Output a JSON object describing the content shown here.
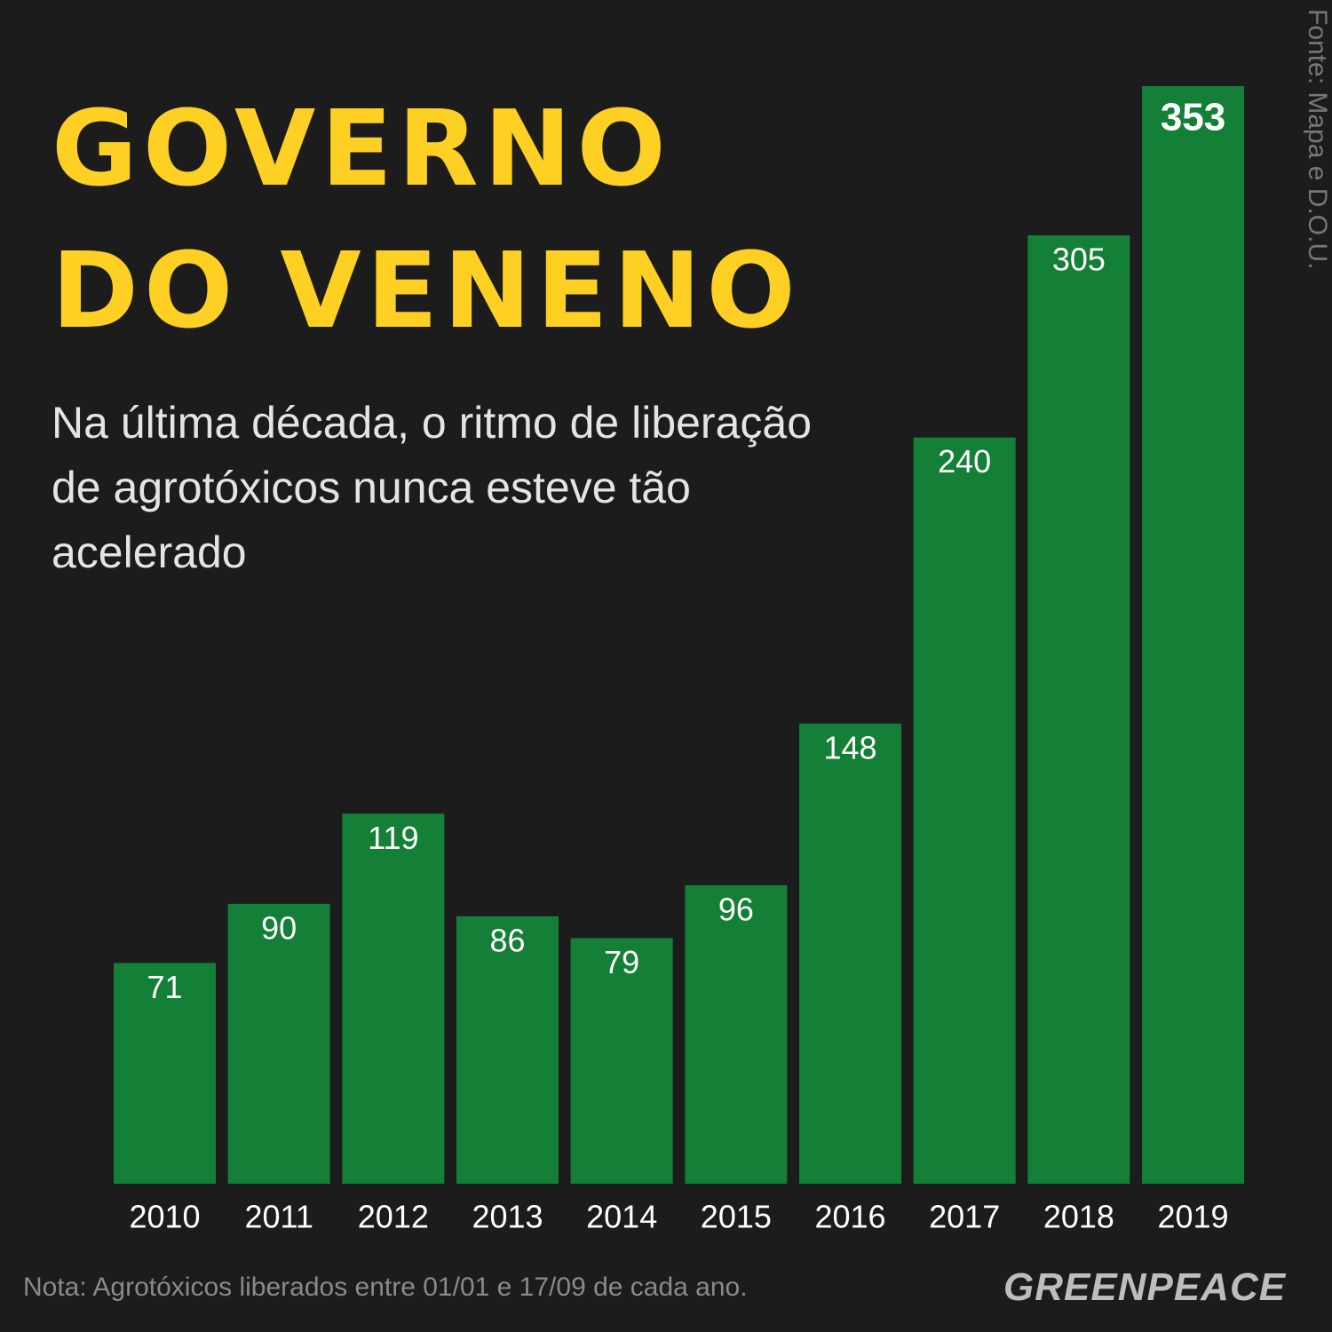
{
  "chart_data": {
    "type": "bar",
    "title": [
      "GOVERNO",
      "DO VENENO"
    ],
    "subtitle": "Na última década, o ritmo de liberação de agrotóxicos nunca esteve tão acelerado",
    "source": "Fonte: Mapa e D.O.U.",
    "note": "Nota: Agrotóxicos liberados entre 01/01 e 17/09 de cada ano.",
    "logo": "GREENPEACE",
    "categories": [
      "2010",
      "2011",
      "2012",
      "2013",
      "2014",
      "2015",
      "2016",
      "2017",
      "2018",
      "2019"
    ],
    "values": [
      71,
      90,
      119,
      86,
      79,
      96,
      148,
      240,
      305,
      353
    ],
    "color": "#147f37"
  }
}
